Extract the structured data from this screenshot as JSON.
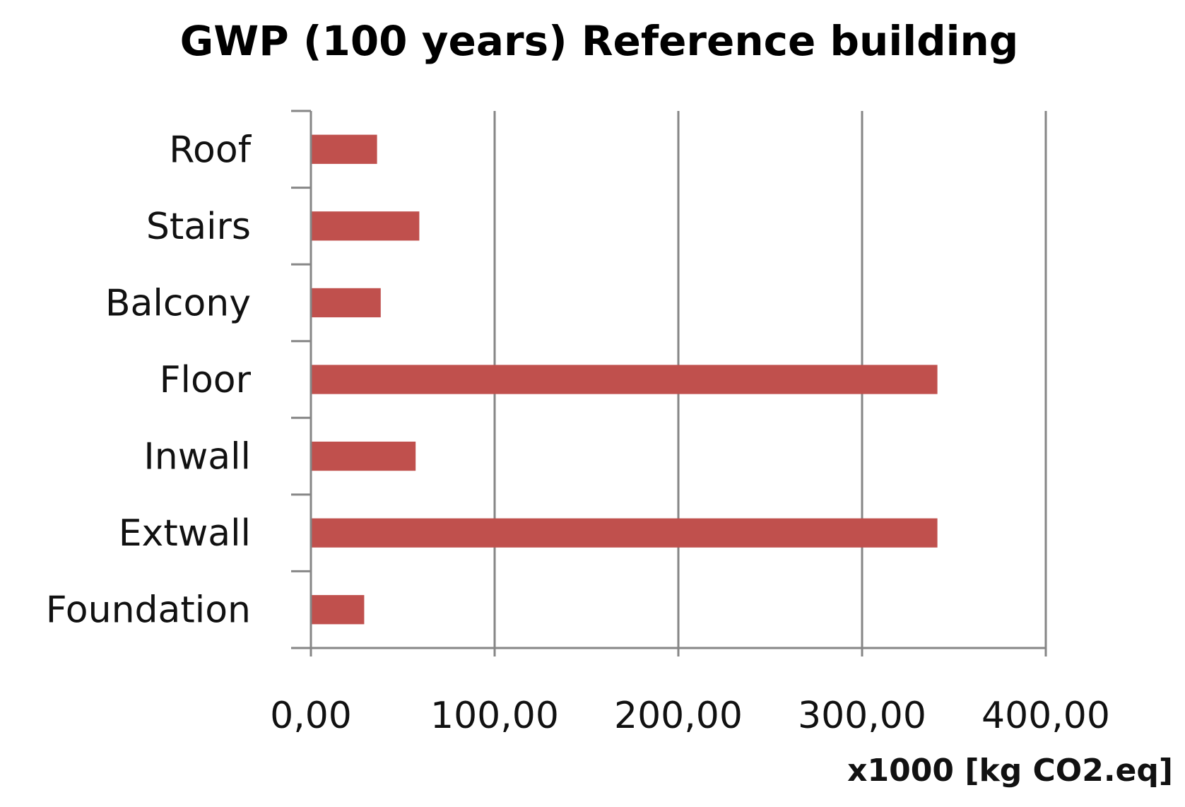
{
  "chart_data": {
    "type": "bar",
    "orientation": "horizontal",
    "title": "GWP (100 years) Reference building",
    "xlabel": "x1000 [kg CO2.eq]",
    "ylabel": "",
    "categories": [
      "Roof",
      "Stairs",
      "Balcony",
      "Floor",
      "Inwall",
      "Extwall",
      "Foundation"
    ],
    "values": [
      36,
      59,
      38,
      341,
      57,
      341,
      29
    ],
    "xlim": [
      0,
      400
    ],
    "xticks": [
      0,
      100,
      200,
      300,
      400
    ],
    "xtick_labels": [
      "0,00",
      "100,00",
      "200,00",
      "300,00",
      "400,00"
    ],
    "grid": "vertical",
    "legend": "none",
    "bar_color": "#c0504d",
    "grid_color": "#868686",
    "axis_color": "#868686"
  }
}
